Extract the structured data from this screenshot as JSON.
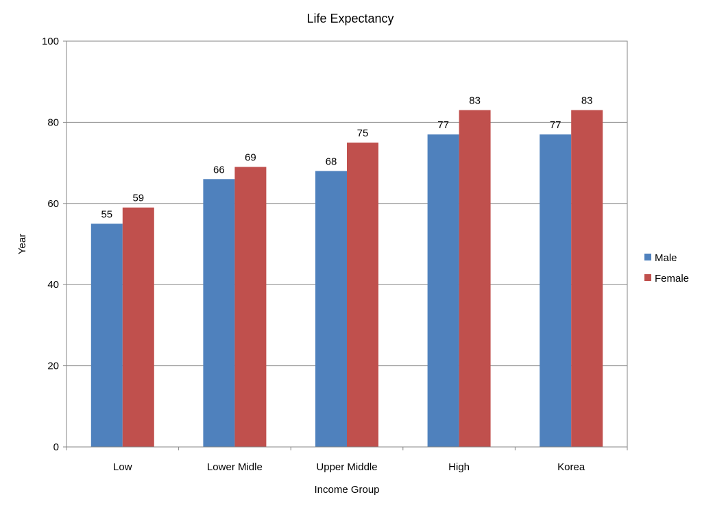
{
  "chart_data": {
    "type": "bar",
    "title": "Life Expectancy",
    "xlabel": "Income Group",
    "ylabel": "Year",
    "categories": [
      "Low",
      "Lower Midle",
      "Upper Middle",
      "High",
      "Korea"
    ],
    "series": [
      {
        "name": "Male",
        "color": "#4F81BD",
        "values": [
          55,
          66,
          68,
          77,
          77
        ]
      },
      {
        "name": "Female",
        "color": "#C0504D",
        "values": [
          59,
          69,
          75,
          83,
          83
        ]
      }
    ],
    "ylim": [
      0,
      100
    ],
    "yticks": [
      0,
      20,
      40,
      60,
      80,
      100
    ],
    "grid": true,
    "legend_position": "right",
    "data_labels": true
  }
}
